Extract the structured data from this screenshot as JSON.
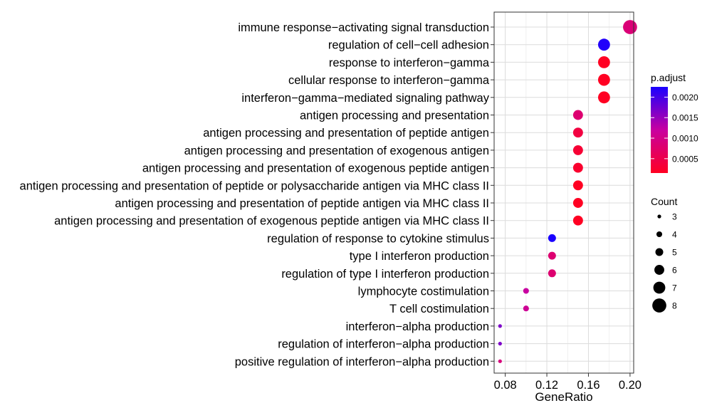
{
  "chart_data": {
    "type": "scatter",
    "xlabel": "GeneRatio",
    "ylabel": "",
    "title": "",
    "xlim": [
      0.0693,
      0.2035
    ],
    "xticks": [
      0.08,
      0.12,
      0.16,
      0.2
    ],
    "xtick_labels": [
      "0.08",
      "0.12",
      "0.16",
      "0.20"
    ],
    "grid": true,
    "legend_placement": "right",
    "color_legend": {
      "title": "p.adjust",
      "ticks": [
        0.002,
        0.0015,
        0.001,
        0.0005
      ],
      "tick_labels": [
        "0.0020",
        "0.0015",
        "0.0010",
        "0.0005"
      ],
      "range": [
        0.00015,
        0.00225
      ],
      "low_color": "#ff0000",
      "high_color": "#0000ff"
    },
    "size_legend": {
      "title": "Count",
      "values": [
        3,
        4,
        5,
        6,
        7,
        8
      ],
      "labels": [
        "3",
        "4",
        "5",
        "6",
        "7",
        "8"
      ]
    },
    "points": [
      {
        "term": "immune response−activating signal transduction",
        "x": 0.2,
        "count": 8,
        "p_adjust": 0.00085
      },
      {
        "term": "regulation of cell−cell adhesion",
        "x": 0.175,
        "count": 7,
        "p_adjust": 0.0022
      },
      {
        "term": "response to interferon−gamma",
        "x": 0.175,
        "count": 7,
        "p_adjust": 0.00015
      },
      {
        "term": "cellular response to interferon−gamma",
        "x": 0.175,
        "count": 7,
        "p_adjust": 0.00015
      },
      {
        "term": "interferon−gamma−mediated signaling pathway",
        "x": 0.175,
        "count": 7,
        "p_adjust": 0.00015
      },
      {
        "term": "antigen processing and presentation",
        "x": 0.15,
        "count": 6,
        "p_adjust": 0.0008
      },
      {
        "term": "antigen processing and presentation of peptide antigen",
        "x": 0.15,
        "count": 6,
        "p_adjust": 0.0004
      },
      {
        "term": "antigen processing and presentation of exogenous antigen",
        "x": 0.15,
        "count": 6,
        "p_adjust": 0.0003
      },
      {
        "term": "antigen processing and presentation of exogenous peptide antigen",
        "x": 0.15,
        "count": 6,
        "p_adjust": 0.00025
      },
      {
        "term": "antigen processing and presentation of peptide or polysaccharide antigen via MHC class II",
        "x": 0.15,
        "count": 6,
        "p_adjust": 0.00015
      },
      {
        "term": "antigen processing and presentation of peptide antigen via MHC class II",
        "x": 0.15,
        "count": 6,
        "p_adjust": 0.00015
      },
      {
        "term": "antigen processing and presentation of exogenous peptide antigen via MHC class II",
        "x": 0.15,
        "count": 6,
        "p_adjust": 0.00015
      },
      {
        "term": "regulation of response to cytokine stimulus",
        "x": 0.125,
        "count": 5,
        "p_adjust": 0.00225
      },
      {
        "term": "type I interferon production",
        "x": 0.125,
        "count": 5,
        "p_adjust": 0.0008
      },
      {
        "term": "regulation of type I interferon production",
        "x": 0.125,
        "count": 5,
        "p_adjust": 0.0008
      },
      {
        "term": "lymphocyte costimulation",
        "x": 0.1,
        "count": 4,
        "p_adjust": 0.0012
      },
      {
        "term": "T cell costimulation",
        "x": 0.1,
        "count": 4,
        "p_adjust": 0.0011
      },
      {
        "term": "interferon−alpha production",
        "x": 0.075,
        "count": 3,
        "p_adjust": 0.00165
      },
      {
        "term": "regulation of interferon−alpha production",
        "x": 0.075,
        "count": 3,
        "p_adjust": 0.00165
      },
      {
        "term": "positive regulation of interferon−alpha production",
        "x": 0.075,
        "count": 3,
        "p_adjust": 0.0009
      }
    ]
  }
}
